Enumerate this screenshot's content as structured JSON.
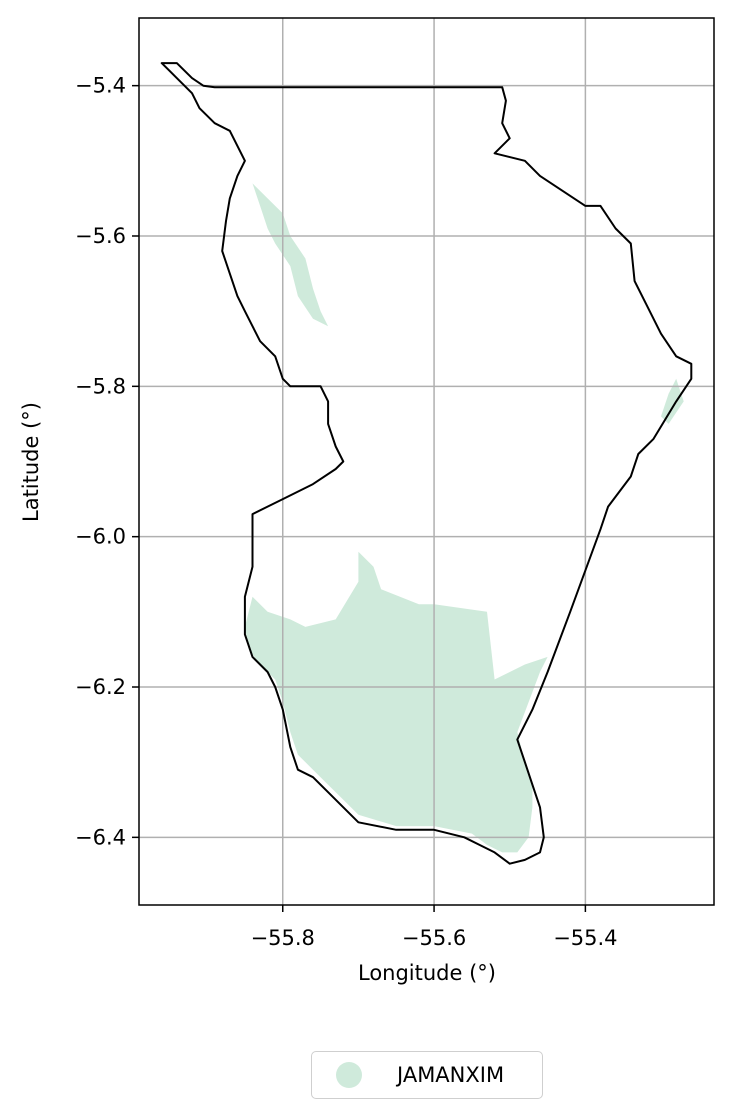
{
  "chart_data": {
    "type": "map",
    "xlabel": "Longitude (°)",
    "ylabel": "Latitude (°)",
    "xlim": [
      -55.99,
      -55.23
    ],
    "ylim": [
      -6.49,
      -5.31
    ],
    "xticks": [
      {
        "value": -55.8,
        "label": "−55.8"
      },
      {
        "value": -55.6,
        "label": "−55.6"
      },
      {
        "value": -55.4,
        "label": "−55.4"
      }
    ],
    "yticks": [
      {
        "value": -5.4,
        "label": "−5.4"
      },
      {
        "value": -5.6,
        "label": "−5.6"
      },
      {
        "value": -5.8,
        "label": "−5.8"
      },
      {
        "value": -6.0,
        "label": "−6.0"
      },
      {
        "value": -6.2,
        "label": "−6.2"
      },
      {
        "value": -6.4,
        "label": "−6.4"
      }
    ],
    "grid": true,
    "legend_position": "bottom-center",
    "legend": [
      {
        "label": "JAMANXIM",
        "color": "#cfeadb"
      }
    ],
    "boundary_color": "#000000",
    "boundary": [
      [
        -55.96,
        -5.37
      ],
      [
        -55.94,
        -5.37
      ],
      [
        -55.93,
        -5.38
      ],
      [
        -55.92,
        -5.39
      ],
      [
        -55.905,
        -5.4
      ],
      [
        -55.89,
        -5.402
      ],
      [
        -55.75,
        -5.402
      ],
      [
        -55.6,
        -5.402
      ],
      [
        -55.51,
        -5.402
      ],
      [
        -55.505,
        -5.42
      ],
      [
        -55.51,
        -5.45
      ],
      [
        -55.5,
        -5.47
      ],
      [
        -55.52,
        -5.49
      ],
      [
        -55.48,
        -5.5
      ],
      [
        -55.46,
        -5.52
      ],
      [
        -55.43,
        -5.54
      ],
      [
        -55.4,
        -5.56
      ],
      [
        -55.38,
        -5.56
      ],
      [
        -55.36,
        -5.59
      ],
      [
        -55.34,
        -5.61
      ],
      [
        -55.335,
        -5.66
      ],
      [
        -55.32,
        -5.69
      ],
      [
        -55.3,
        -5.73
      ],
      [
        -55.28,
        -5.76
      ],
      [
        -55.26,
        -5.77
      ],
      [
        -55.26,
        -5.79
      ],
      [
        -55.28,
        -5.82
      ],
      [
        -55.31,
        -5.87
      ],
      [
        -55.33,
        -5.89
      ],
      [
        -55.34,
        -5.92
      ],
      [
        -55.37,
        -5.96
      ],
      [
        -55.38,
        -5.99
      ],
      [
        -55.42,
        -6.1
      ],
      [
        -55.45,
        -6.18
      ],
      [
        -55.47,
        -6.23
      ],
      [
        -55.49,
        -6.27
      ],
      [
        -55.48,
        -6.3
      ],
      [
        -55.47,
        -6.33
      ],
      [
        -55.46,
        -6.36
      ],
      [
        -55.455,
        -6.4
      ],
      [
        -55.46,
        -6.42
      ],
      [
        -55.48,
        -6.43
      ],
      [
        -55.5,
        -6.435
      ],
      [
        -55.52,
        -6.42
      ],
      [
        -55.54,
        -6.41
      ],
      [
        -55.56,
        -6.4
      ],
      [
        -55.6,
        -6.39
      ],
      [
        -55.65,
        -6.39
      ],
      [
        -55.7,
        -6.38
      ],
      [
        -55.72,
        -6.36
      ],
      [
        -55.74,
        -6.34
      ],
      [
        -55.76,
        -6.32
      ],
      [
        -55.78,
        -6.31
      ],
      [
        -55.79,
        -6.28
      ],
      [
        -55.8,
        -6.23
      ],
      [
        -55.81,
        -6.2
      ],
      [
        -55.82,
        -6.18
      ],
      [
        -55.84,
        -6.16
      ],
      [
        -55.85,
        -6.13
      ],
      [
        -55.85,
        -6.08
      ],
      [
        -55.84,
        -6.04
      ],
      [
        -55.84,
        -6.0
      ],
      [
        -55.84,
        -5.97
      ],
      [
        -55.82,
        -5.96
      ],
      [
        -55.8,
        -5.95
      ],
      [
        -55.76,
        -5.93
      ],
      [
        -55.73,
        -5.91
      ],
      [
        -55.72,
        -5.9
      ],
      [
        -55.73,
        -5.88
      ],
      [
        -55.74,
        -5.85
      ],
      [
        -55.74,
        -5.82
      ],
      [
        -55.75,
        -5.8
      ],
      [
        -55.77,
        -5.8
      ],
      [
        -55.79,
        -5.8
      ],
      [
        -55.8,
        -5.79
      ],
      [
        -55.81,
        -5.76
      ],
      [
        -55.83,
        -5.74
      ],
      [
        -55.84,
        -5.72
      ],
      [
        -55.85,
        -5.7
      ],
      [
        -55.86,
        -5.68
      ],
      [
        -55.87,
        -5.65
      ],
      [
        -55.88,
        -5.62
      ],
      [
        -55.875,
        -5.58
      ],
      [
        -55.87,
        -5.55
      ],
      [
        -55.86,
        -5.52
      ],
      [
        -55.85,
        -5.5
      ],
      [
        -55.87,
        -5.46
      ],
      [
        -55.89,
        -5.45
      ],
      [
        -55.91,
        -5.43
      ],
      [
        -55.92,
        -5.41
      ],
      [
        -55.94,
        -5.39
      ],
      [
        -55.95,
        -5.38
      ],
      [
        -55.96,
        -5.37
      ]
    ],
    "areas": [
      {
        "name": "JAMANXIM",
        "color": "#cfeadb",
        "polygons": [
          [
            [
              -55.84,
              -6.08
            ],
            [
              -55.82,
              -6.1
            ],
            [
              -55.79,
              -6.11
            ],
            [
              -55.77,
              -6.12
            ],
            [
              -55.73,
              -6.11
            ],
            [
              -55.7,
              -6.06
            ],
            [
              -55.7,
              -6.02
            ],
            [
              -55.68,
              -6.04
            ],
            [
              -55.67,
              -6.07
            ],
            [
              -55.62,
              -6.09
            ],
            [
              -55.6,
              -6.09
            ],
            [
              -55.53,
              -6.1
            ],
            [
              -55.52,
              -6.19
            ],
            [
              -55.48,
              -6.17
            ],
            [
              -55.45,
              -6.16
            ],
            [
              -55.46,
              -6.18
            ],
            [
              -55.49,
              -6.26
            ],
            [
              -55.48,
              -6.3
            ],
            [
              -55.47,
              -6.33
            ],
            [
              -55.47,
              -6.36
            ],
            [
              -55.475,
              -6.4
            ],
            [
              -55.49,
              -6.42
            ],
            [
              -55.51,
              -6.42
            ],
            [
              -55.53,
              -6.41
            ],
            [
              -55.55,
              -6.395
            ],
            [
              -55.6,
              -6.385
            ],
            [
              -55.65,
              -6.385
            ],
            [
              -55.7,
              -6.37
            ],
            [
              -55.72,
              -6.35
            ],
            [
              -55.74,
              -6.33
            ],
            [
              -55.76,
              -6.31
            ],
            [
              -55.78,
              -6.29
            ],
            [
              -55.79,
              -6.26
            ],
            [
              -55.8,
              -6.22
            ],
            [
              -55.81,
              -6.19
            ],
            [
              -55.83,
              -6.17
            ],
            [
              -55.845,
              -6.15
            ],
            [
              -55.85,
              -6.12
            ]
          ],
          [
            [
              -55.84,
              -5.53
            ],
            [
              -55.82,
              -5.55
            ],
            [
              -55.8,
              -5.57
            ],
            [
              -55.79,
              -5.6
            ],
            [
              -55.77,
              -5.63
            ],
            [
              -55.76,
              -5.67
            ],
            [
              -55.75,
              -5.7
            ],
            [
              -55.74,
              -5.72
            ],
            [
              -55.76,
              -5.71
            ],
            [
              -55.78,
              -5.68
            ],
            [
              -55.79,
              -5.64
            ],
            [
              -55.81,
              -5.61
            ],
            [
              -55.82,
              -5.59
            ],
            [
              -55.83,
              -5.56
            ]
          ],
          [
            [
              -55.28,
              -5.79
            ],
            [
              -55.27,
              -5.82
            ],
            [
              -55.29,
              -5.85
            ],
            [
              -55.3,
              -5.84
            ],
            [
              -55.29,
              -5.81
            ]
          ]
        ]
      }
    ]
  }
}
